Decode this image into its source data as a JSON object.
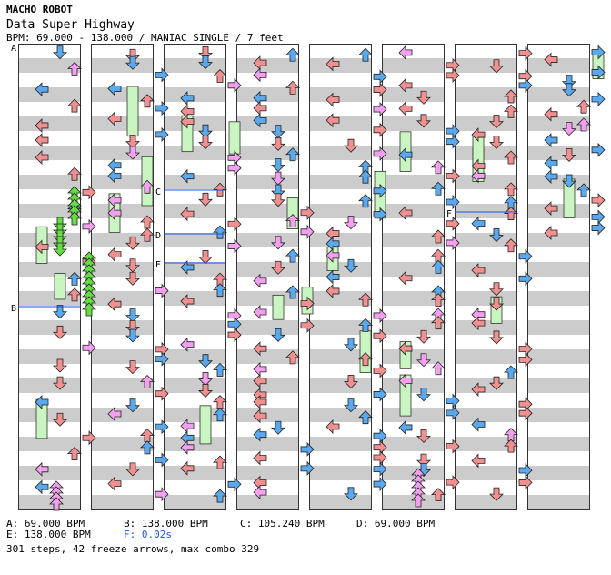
{
  "header": {
    "artist": "MACHO ROBOT",
    "title": "Data Super Highway",
    "info": "BPM: 69.000 - 138.000 / MANIAC SINGLE / 7 feet"
  },
  "markers": [
    "A",
    "B",
    "C",
    "D",
    "E",
    "F"
  ],
  "legend": {
    "a": "A: 69.000 BPM",
    "b": "B: 138.000 BPM",
    "c": "C: 105.240 BPM",
    "d": "D: 69.000 BPM",
    "e": "E: 138.000 BPM",
    "f": "F: 0.02s"
  },
  "summary": "301 steps, 42 freeze arrows, max combo 329",
  "colors": {
    "left": "#f09090",
    "down": "#5aa8ee",
    "up": "#f09090",
    "right": "#f09090",
    "quarter": "#5aa8ee",
    "eighth": "#f4a0f0",
    "freeze": "#c8f5c0",
    "sixteenth": "#66dd44",
    "stripe": "#cccccc"
  }
}
